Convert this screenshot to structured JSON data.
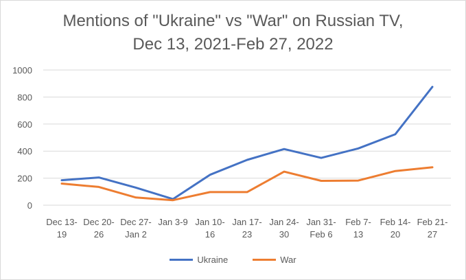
{
  "chart_data": {
    "type": "line",
    "title_line1": "Mentions of \"Ukraine\" vs \"War\" on Russian TV,",
    "title_line2": "Dec 13, 2021-Feb 27, 2022",
    "categories": [
      [
        "Dec 13-",
        "19"
      ],
      [
        "Dec 20-",
        "26"
      ],
      [
        "Dec 27-",
        "Jan 2"
      ],
      [
        "Jan 3-9",
        ""
      ],
      [
        "Jan 10-",
        "16"
      ],
      [
        "Jan 17-",
        "23"
      ],
      [
        "Jan 24-",
        "30"
      ],
      [
        "Jan 31-",
        "Feb 6"
      ],
      [
        "Feb 7-",
        "13"
      ],
      [
        "Feb 14-",
        "20"
      ],
      [
        "Feb 21-",
        "27"
      ]
    ],
    "series": [
      {
        "name": "Ukraine",
        "color": "#4472c4",
        "values": [
          185,
          205,
          130,
          45,
          225,
          335,
          415,
          350,
          420,
          525,
          875
        ]
      },
      {
        "name": "War",
        "color": "#ed7d31",
        "values": [
          160,
          135,
          57,
          37,
          97,
          97,
          248,
          180,
          182,
          253,
          280
        ]
      }
    ],
    "ylim": [
      0,
      1000
    ],
    "yticks": [
      0,
      200,
      400,
      600,
      800,
      1000
    ],
    "grid": true,
    "legend_position": "bottom",
    "xlabel": "",
    "ylabel": ""
  }
}
